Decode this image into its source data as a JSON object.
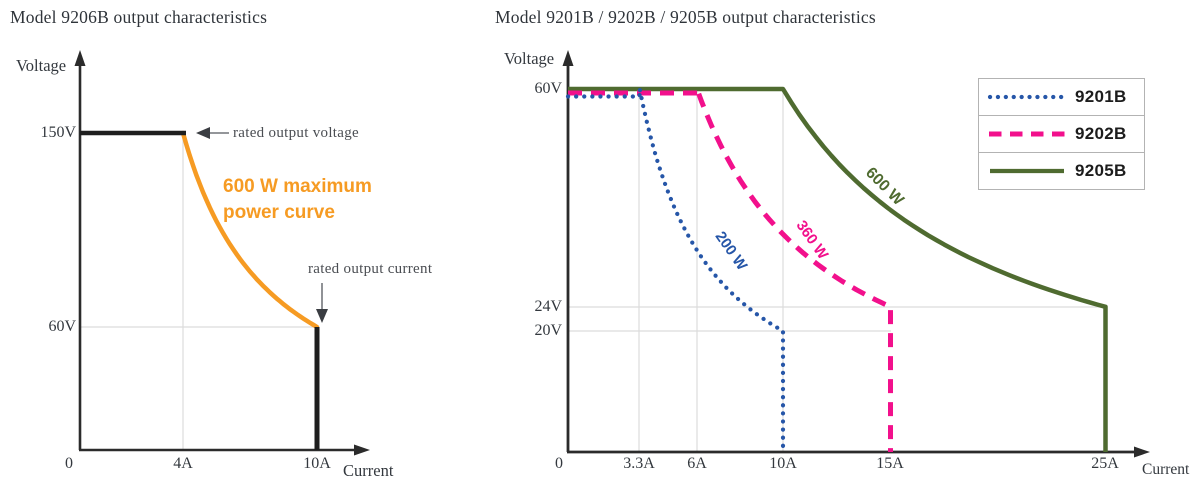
{
  "chart_data": [
    {
      "type": "line",
      "title": "Model 9206B output characteristics",
      "xlabel": "Current",
      "ylabel": "Voltage",
      "x_unit": "A",
      "y_unit": "V",
      "xlim": [
        0,
        12
      ],
      "ylim": [
        0,
        180
      ],
      "grid": true,
      "x_ticks": [
        {
          "value": 0,
          "label": "0"
        },
        {
          "value": 4,
          "label": "4A"
        },
        {
          "value": 10,
          "label": "10A"
        }
      ],
      "y_ticks": [
        {
          "value": 150,
          "label": "150V"
        },
        {
          "value": 60,
          "label": "60V"
        }
      ],
      "series": [
        {
          "name": "9206B 600 W limit",
          "power_w": 600,
          "v_rated": 150,
          "i_corner": 4,
          "i_rated": 10,
          "v_at_i_rated": 60,
          "style": "solid",
          "color": "#F69B23",
          "limit_line_color": "#1e1e1e"
        }
      ],
      "annotations": [
        {
          "text": "rated output voltage",
          "target": "end of 150V plateau at 4A"
        },
        {
          "text": "rated output current",
          "target": "top of 10A limit line at 60V"
        },
        {
          "text": "600 W maximum power curve",
          "color": "#F69B23"
        }
      ]
    },
    {
      "type": "line",
      "title": "Model 9201B / 9202B / 9205B output characteristics",
      "xlabel": "Current",
      "ylabel": "Voltage",
      "x_unit": "A",
      "y_unit": "V",
      "xlim": [
        0,
        27
      ],
      "ylim": [
        0,
        66
      ],
      "grid": true,
      "legend_position": "top-right",
      "x_ticks": [
        {
          "value": 0,
          "label": "0"
        },
        {
          "value": 3.3,
          "label": "3.3A"
        },
        {
          "value": 6,
          "label": "6A"
        },
        {
          "value": 10,
          "label": "10A"
        },
        {
          "value": 15,
          "label": "15A"
        },
        {
          "value": 25,
          "label": "25A"
        }
      ],
      "y_ticks": [
        {
          "value": 60,
          "label": "60V"
        },
        {
          "value": 24,
          "label": "24V"
        },
        {
          "value": 20,
          "label": "20V"
        }
      ],
      "series": [
        {
          "name": "9201B",
          "power_w": 200,
          "v_max": 60,
          "i_corner": 3.33,
          "i_max": 10,
          "v_at_i_max": 20,
          "style": "dotted",
          "color": "#2656A8",
          "curve_label": "200 W"
        },
        {
          "name": "9202B",
          "power_w": 360,
          "v_max": 60,
          "i_corner": 6,
          "i_max": 15,
          "v_at_i_max": 24,
          "style": "dashed",
          "color": "#F2108C",
          "curve_label": "360 W"
        },
        {
          "name": "9205B",
          "power_w": 600,
          "v_max": 60,
          "i_corner": 10,
          "i_max": 25,
          "v_at_i_max": 24,
          "style": "solid",
          "color": "#4F6B30",
          "curve_label": "600 W"
        }
      ]
    }
  ],
  "style": {
    "axis_color": "#2b2b2b",
    "grid_color": "#dcdcdc",
    "annotation_arrow_color": "#3a3d42"
  }
}
